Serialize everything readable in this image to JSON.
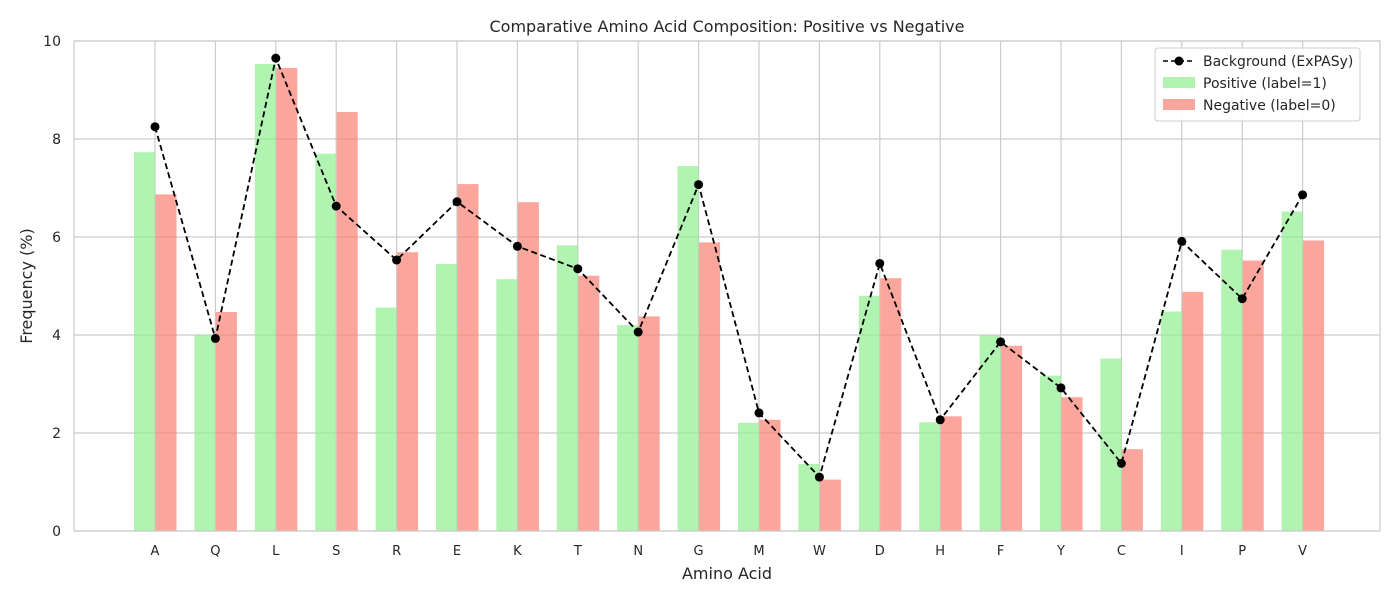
{
  "chart_data": {
    "type": "bar",
    "title": "Comparative Amino Acid Composition: Positive vs Negative",
    "xlabel": "Amino Acid",
    "ylabel": "Frequency (%)",
    "ylim": [
      0,
      10
    ],
    "yticks": [
      0,
      2,
      4,
      6,
      8,
      10
    ],
    "grid": true,
    "legend_position": "top-right",
    "categories": [
      "A",
      "Q",
      "L",
      "S",
      "R",
      "E",
      "K",
      "T",
      "N",
      "G",
      "M",
      "W",
      "D",
      "H",
      "F",
      "Y",
      "C",
      "I",
      "P",
      "V"
    ],
    "series": [
      {
        "name": "Positive (label=1)",
        "kind": "bar",
        "color": "#90ee90",
        "values": [
          7.73,
          4.0,
          9.53,
          7.7,
          4.56,
          5.45,
          5.14,
          5.83,
          4.2,
          7.45,
          2.21,
          1.37,
          4.8,
          2.22,
          3.99,
          3.17,
          3.52,
          4.48,
          5.74,
          6.52
        ]
      },
      {
        "name": "Negative (label=0)",
        "kind": "bar",
        "color": "#fa8072",
        "values": [
          6.87,
          4.47,
          9.45,
          8.55,
          5.69,
          7.08,
          6.71,
          5.21,
          4.38,
          5.89,
          2.27,
          1.05,
          5.16,
          2.34,
          3.78,
          2.73,
          1.67,
          4.88,
          5.52,
          5.93
        ]
      },
      {
        "name": "Background (ExPASy)",
        "kind": "line",
        "color": "#000000",
        "values": [
          8.25,
          3.93,
          9.65,
          6.63,
          5.53,
          6.72,
          5.81,
          5.35,
          4.06,
          7.07,
          2.41,
          1.1,
          5.46,
          2.27,
          3.86,
          2.92,
          1.38,
          5.91,
          4.74,
          6.86
        ]
      }
    ]
  }
}
